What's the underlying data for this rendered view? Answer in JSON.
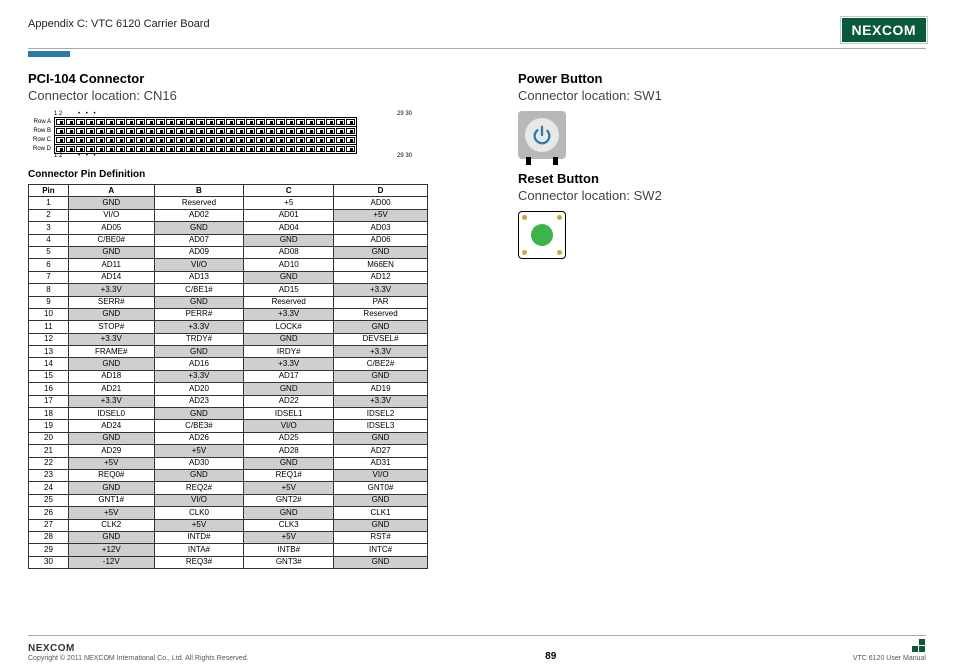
{
  "header": {
    "appendix": "Appendix C: VTC 6120 Carrier Board",
    "logo": "NEXCOM"
  },
  "left": {
    "title": "PCI-104 Connector",
    "sub": "Connector location: CN16",
    "diagram": {
      "rows": [
        "Row A",
        "Row B",
        "Row C",
        "Row D"
      ],
      "pins_per_row": 30,
      "labels_top": {
        "start": "1  2",
        "end": "29 30"
      },
      "labels_bot": {
        "start": "1  2",
        "end": "29 30"
      }
    },
    "subheading": "Connector Pin Definition",
    "table": {
      "columns": [
        "Pin",
        "A",
        "B",
        "C",
        "D"
      ],
      "rows": [
        {
          "n": 1,
          "a": {
            "v": "GND",
            "s": 1
          },
          "b": {
            "v": "Reserved",
            "s": 0
          },
          "c": {
            "v": "+5",
            "s": 0
          },
          "d": {
            "v": "AD00",
            "s": 0
          }
        },
        {
          "n": 2,
          "a": {
            "v": "VI/O",
            "s": 0
          },
          "b": {
            "v": "AD02",
            "s": 0
          },
          "c": {
            "v": "AD01",
            "s": 0
          },
          "d": {
            "v": "+5V",
            "s": 1
          }
        },
        {
          "n": 3,
          "a": {
            "v": "AD05",
            "s": 0
          },
          "b": {
            "v": "GND",
            "s": 1
          },
          "c": {
            "v": "AD04",
            "s": 0
          },
          "d": {
            "v": "AD03",
            "s": 0
          }
        },
        {
          "n": 4,
          "a": {
            "v": "C/BE0#",
            "s": 0
          },
          "b": {
            "v": "AD07",
            "s": 0
          },
          "c": {
            "v": "GND",
            "s": 1
          },
          "d": {
            "v": "AD06",
            "s": 0
          }
        },
        {
          "n": 5,
          "a": {
            "v": "GND",
            "s": 1
          },
          "b": {
            "v": "AD09",
            "s": 0
          },
          "c": {
            "v": "AD08",
            "s": 0
          },
          "d": {
            "v": "GND",
            "s": 1
          }
        },
        {
          "n": 6,
          "a": {
            "v": "AD11",
            "s": 0
          },
          "b": {
            "v": "VI/O",
            "s": 1
          },
          "c": {
            "v": "AD10",
            "s": 0
          },
          "d": {
            "v": "M66EN",
            "s": 0
          }
        },
        {
          "n": 7,
          "a": {
            "v": "AD14",
            "s": 0
          },
          "b": {
            "v": "AD13",
            "s": 0
          },
          "c": {
            "v": "GND",
            "s": 1
          },
          "d": {
            "v": "AD12",
            "s": 0
          }
        },
        {
          "n": 8,
          "a": {
            "v": "+3.3V",
            "s": 1
          },
          "b": {
            "v": "C/BE1#",
            "s": 0
          },
          "c": {
            "v": "AD15",
            "s": 0
          },
          "d": {
            "v": "+3.3V",
            "s": 1
          }
        },
        {
          "n": 9,
          "a": {
            "v": "SERR#",
            "s": 0
          },
          "b": {
            "v": "GND",
            "s": 1
          },
          "c": {
            "v": "Reserved",
            "s": 0
          },
          "d": {
            "v": "PAR",
            "s": 0
          }
        },
        {
          "n": 10,
          "a": {
            "v": "GND",
            "s": 1
          },
          "b": {
            "v": "PERR#",
            "s": 0
          },
          "c": {
            "v": "+3.3V",
            "s": 1
          },
          "d": {
            "v": "Reserved",
            "s": 0
          }
        },
        {
          "n": 11,
          "a": {
            "v": "STOP#",
            "s": 0
          },
          "b": {
            "v": "+3.3V",
            "s": 1
          },
          "c": {
            "v": "LOCK#",
            "s": 0
          },
          "d": {
            "v": "GND",
            "s": 1
          }
        },
        {
          "n": 12,
          "a": {
            "v": "+3.3V",
            "s": 1
          },
          "b": {
            "v": "TRDY#",
            "s": 0
          },
          "c": {
            "v": "GND",
            "s": 1
          },
          "d": {
            "v": "DEVSEL#",
            "s": 0
          }
        },
        {
          "n": 13,
          "a": {
            "v": "FRAME#",
            "s": 0
          },
          "b": {
            "v": "GND",
            "s": 1
          },
          "c": {
            "v": "IRDY#",
            "s": 0
          },
          "d": {
            "v": "+3.3V",
            "s": 1
          }
        },
        {
          "n": 14,
          "a": {
            "v": "GND",
            "s": 1
          },
          "b": {
            "v": "AD16",
            "s": 0
          },
          "c": {
            "v": "+3.3V",
            "s": 1
          },
          "d": {
            "v": "C/BE2#",
            "s": 0
          }
        },
        {
          "n": 15,
          "a": {
            "v": "AD18",
            "s": 0
          },
          "b": {
            "v": "+3.3V",
            "s": 1
          },
          "c": {
            "v": "AD17",
            "s": 0
          },
          "d": {
            "v": "GND",
            "s": 1
          }
        },
        {
          "n": 16,
          "a": {
            "v": "AD21",
            "s": 0
          },
          "b": {
            "v": "AD20",
            "s": 0
          },
          "c": {
            "v": "GND",
            "s": 1
          },
          "d": {
            "v": "AD19",
            "s": 0
          }
        },
        {
          "n": 17,
          "a": {
            "v": "+3.3V",
            "s": 1
          },
          "b": {
            "v": "AD23",
            "s": 0
          },
          "c": {
            "v": "AD22",
            "s": 0
          },
          "d": {
            "v": "+3.3V",
            "s": 1
          }
        },
        {
          "n": 18,
          "a": {
            "v": "IDSEL0",
            "s": 0
          },
          "b": {
            "v": "GND",
            "s": 1
          },
          "c": {
            "v": "IDSEL1",
            "s": 0
          },
          "d": {
            "v": "IDSEL2",
            "s": 0
          }
        },
        {
          "n": 19,
          "a": {
            "v": "AD24",
            "s": 0
          },
          "b": {
            "v": "C/BE3#",
            "s": 0
          },
          "c": {
            "v": "VI/O",
            "s": 1
          },
          "d": {
            "v": "IDSEL3",
            "s": 0
          }
        },
        {
          "n": 20,
          "a": {
            "v": "GND",
            "s": 1
          },
          "b": {
            "v": "AD26",
            "s": 0
          },
          "c": {
            "v": "AD25",
            "s": 0
          },
          "d": {
            "v": "GND",
            "s": 1
          }
        },
        {
          "n": 21,
          "a": {
            "v": "AD29",
            "s": 0
          },
          "b": {
            "v": "+5V",
            "s": 1
          },
          "c": {
            "v": "AD28",
            "s": 0
          },
          "d": {
            "v": "AD27",
            "s": 0
          }
        },
        {
          "n": 22,
          "a": {
            "v": "+5V",
            "s": 1
          },
          "b": {
            "v": "AD30",
            "s": 0
          },
          "c": {
            "v": "GND",
            "s": 1
          },
          "d": {
            "v": "AD31",
            "s": 0
          }
        },
        {
          "n": 23,
          "a": {
            "v": "REQ0#",
            "s": 0
          },
          "b": {
            "v": "GND",
            "s": 1
          },
          "c": {
            "v": "REQ1#",
            "s": 0
          },
          "d": {
            "v": "VI/O",
            "s": 1
          }
        },
        {
          "n": 24,
          "a": {
            "v": "GND",
            "s": 1
          },
          "b": {
            "v": "REQ2#",
            "s": 0
          },
          "c": {
            "v": "+5V",
            "s": 1
          },
          "d": {
            "v": "GNT0#",
            "s": 0
          }
        },
        {
          "n": 25,
          "a": {
            "v": "GNT1#",
            "s": 0
          },
          "b": {
            "v": "VI/O",
            "s": 1
          },
          "c": {
            "v": "GNT2#",
            "s": 0
          },
          "d": {
            "v": "GND",
            "s": 1
          }
        },
        {
          "n": 26,
          "a": {
            "v": "+5V",
            "s": 1
          },
          "b": {
            "v": "CLK0",
            "s": 0
          },
          "c": {
            "v": "GND",
            "s": 1
          },
          "d": {
            "v": "CLK1",
            "s": 0
          }
        },
        {
          "n": 27,
          "a": {
            "v": "CLK2",
            "s": 0
          },
          "b": {
            "v": "+5V",
            "s": 1
          },
          "c": {
            "v": "CLK3",
            "s": 0
          },
          "d": {
            "v": "GND",
            "s": 1
          }
        },
        {
          "n": 28,
          "a": {
            "v": "GND",
            "s": 1
          },
          "b": {
            "v": "INTD#",
            "s": 0
          },
          "c": {
            "v": "+5V",
            "s": 1
          },
          "d": {
            "v": "RST#",
            "s": 0
          }
        },
        {
          "n": 29,
          "a": {
            "v": "+12V",
            "s": 1
          },
          "b": {
            "v": "INTA#",
            "s": 0
          },
          "c": {
            "v": "INTB#",
            "s": 0
          },
          "d": {
            "v": "INTC#",
            "s": 0
          }
        },
        {
          "n": 30,
          "a": {
            "v": "-12V",
            "s": 1
          },
          "b": {
            "v": "REQ3#",
            "s": 0
          },
          "c": {
            "v": "GNT3#",
            "s": 0
          },
          "d": {
            "v": "GND",
            "s": 1
          }
        }
      ]
    }
  },
  "right": {
    "power_title": "Power Button",
    "power_sub": "Connector location: SW1",
    "reset_title": "Reset Button",
    "reset_sub": "Connector location: SW2"
  },
  "footer": {
    "logo": "NEXCOM",
    "copyright": "Copyright © 2011 NEXCOM International Co., Ltd. All Rights Reserved.",
    "page": "89",
    "manual": "VTC 6120 User Manual"
  },
  "colors": {
    "logo_bg": "#0a5a3a",
    "accent": "#2c7aa8",
    "shade": "#cfcfcf",
    "power_icon": "#2c7aa8",
    "reset_dot": "#3bb44a"
  }
}
